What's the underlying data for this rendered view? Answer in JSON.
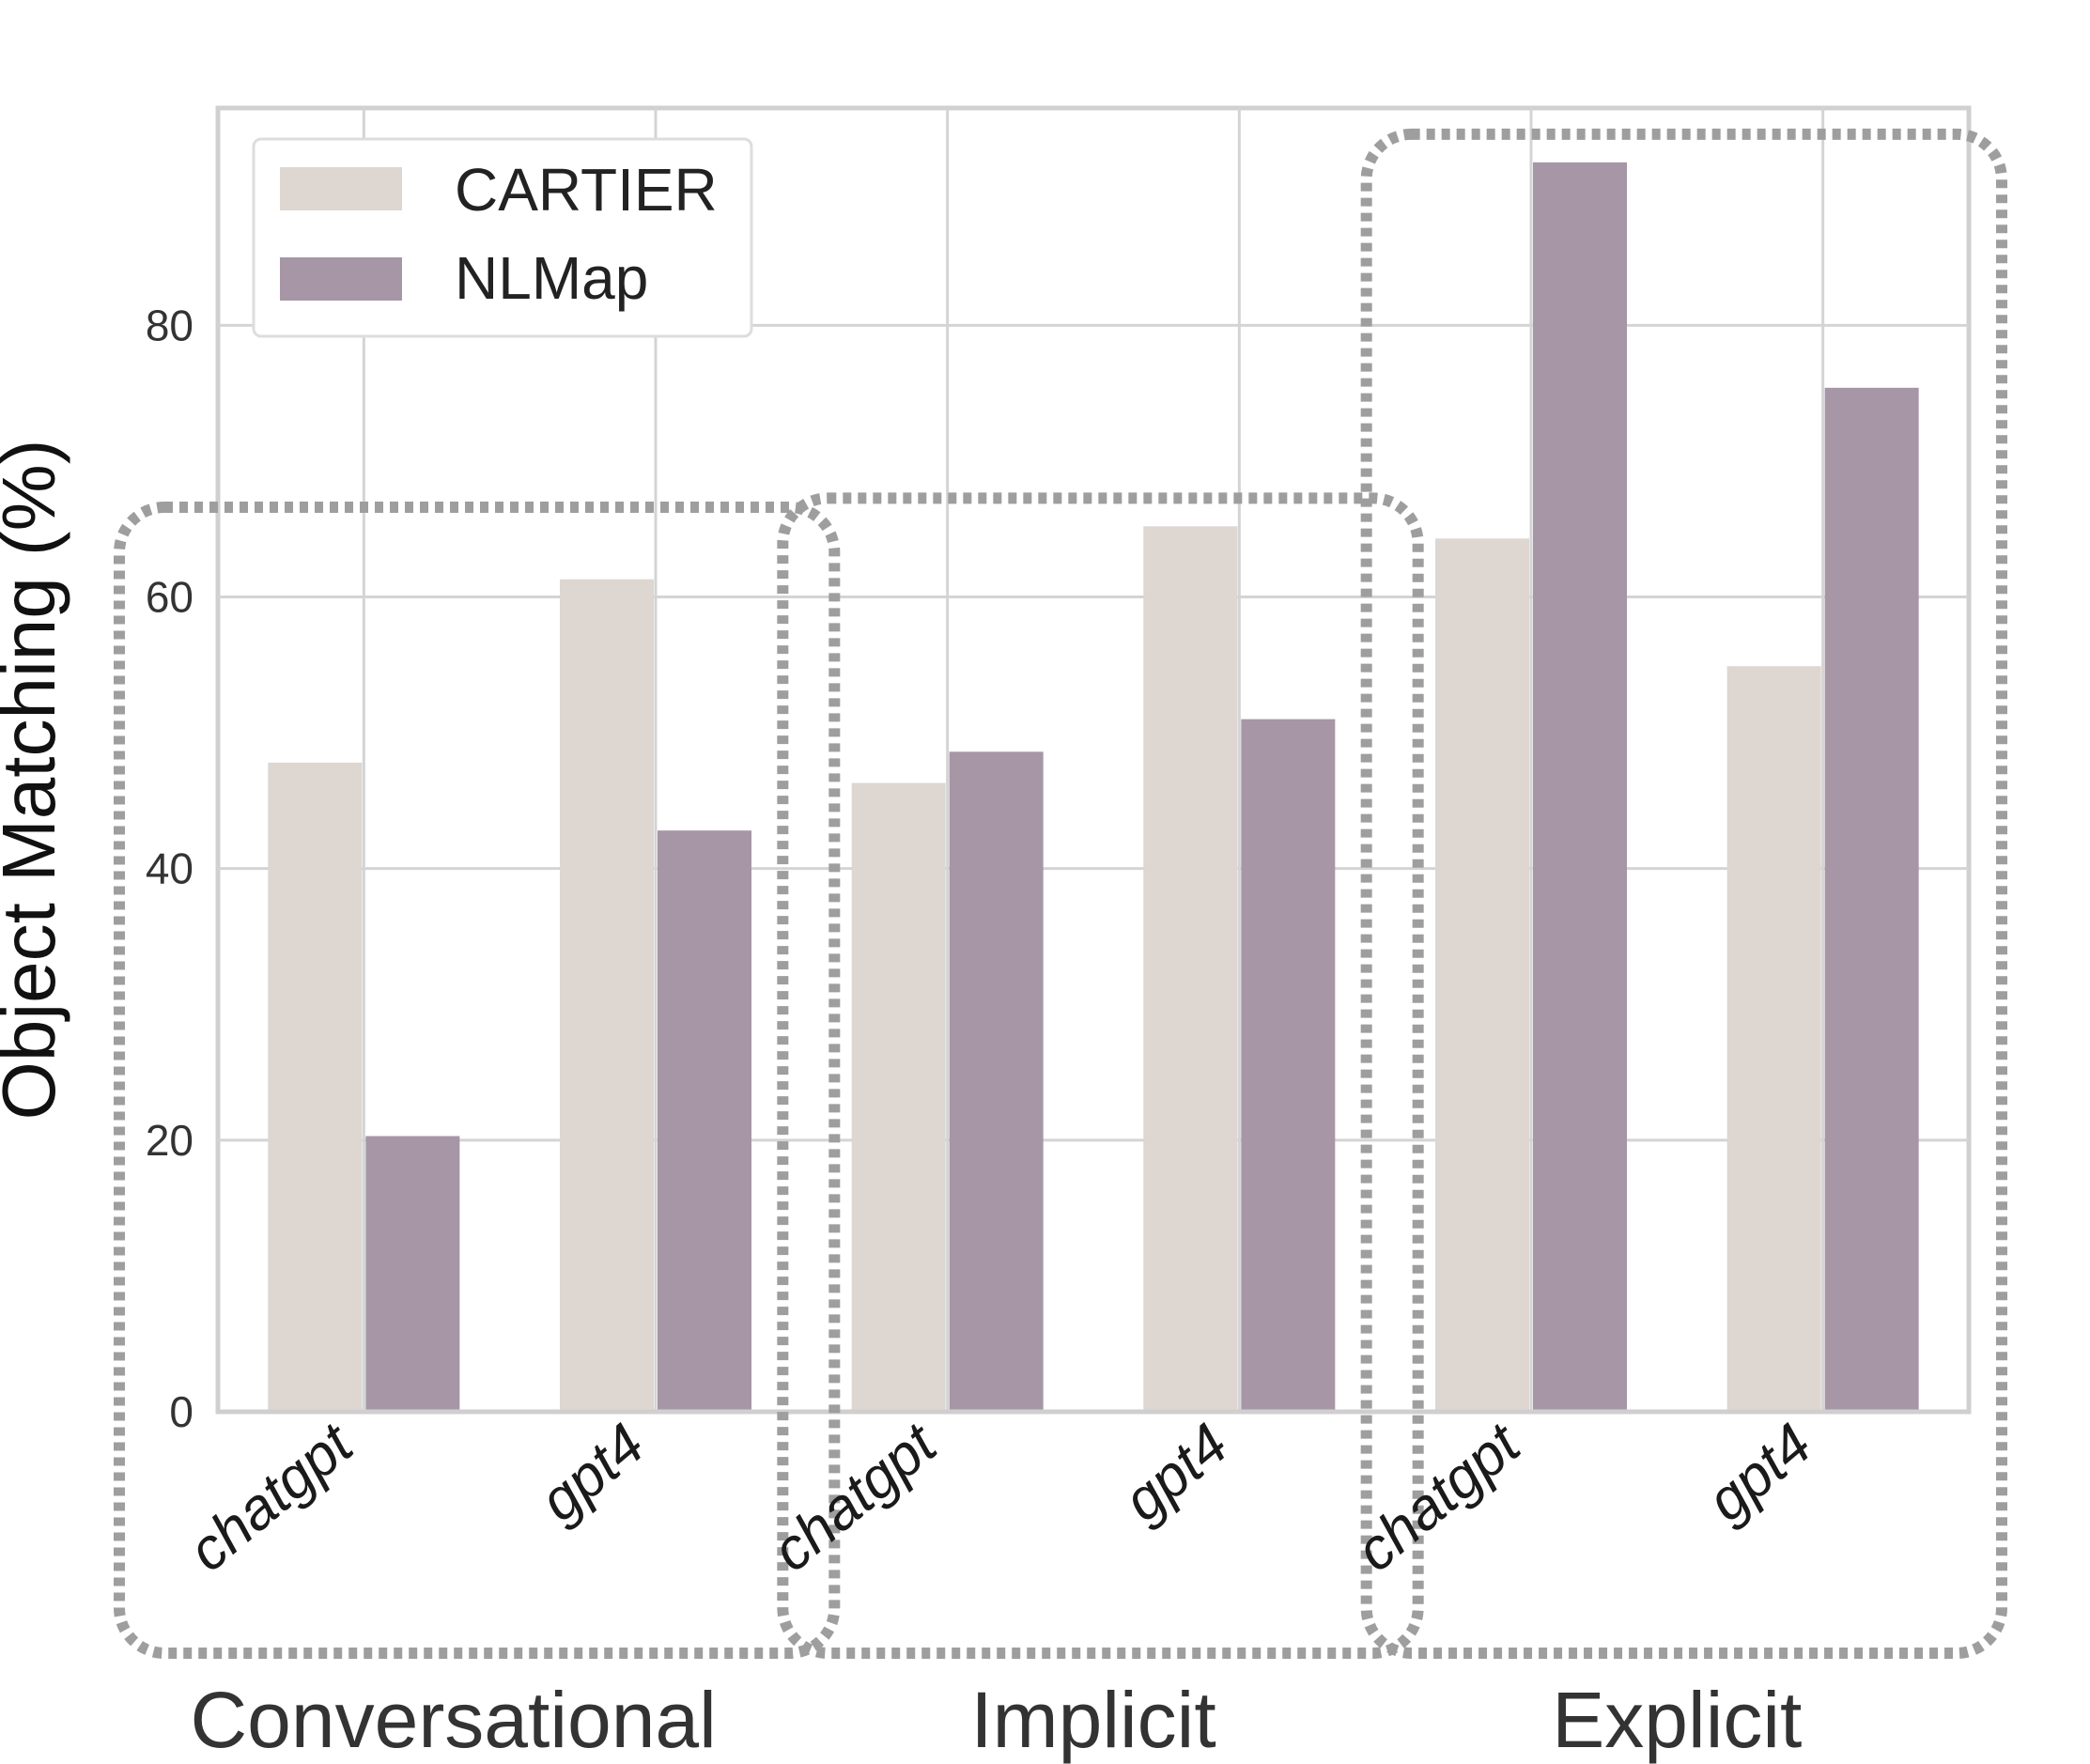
{
  "chart_data": {
    "type": "bar",
    "ylabel": "Object Matching (%)",
    "ylim": [
      0,
      96
    ],
    "yticks": [
      0,
      20,
      40,
      60,
      80
    ],
    "grid": true,
    "legend_position": "top-left",
    "groups": [
      "Conversational",
      "Implicit",
      "Explicit"
    ],
    "categories": [
      "chatgpt",
      "gpt4",
      "chatgpt",
      "gpt4",
      "chatgpt",
      "gpt4"
    ],
    "series": [
      {
        "name": "CARTIER",
        "color": "#ddd6d1",
        "values": [
          47.8,
          61.3,
          46.3,
          65.2,
          64.3,
          54.9
        ]
      },
      {
        "name": "NLMap",
        "color": "#a696a6",
        "values": [
          20.3,
          42.8,
          48.6,
          51.0,
          92.0,
          75.4
        ]
      }
    ]
  }
}
